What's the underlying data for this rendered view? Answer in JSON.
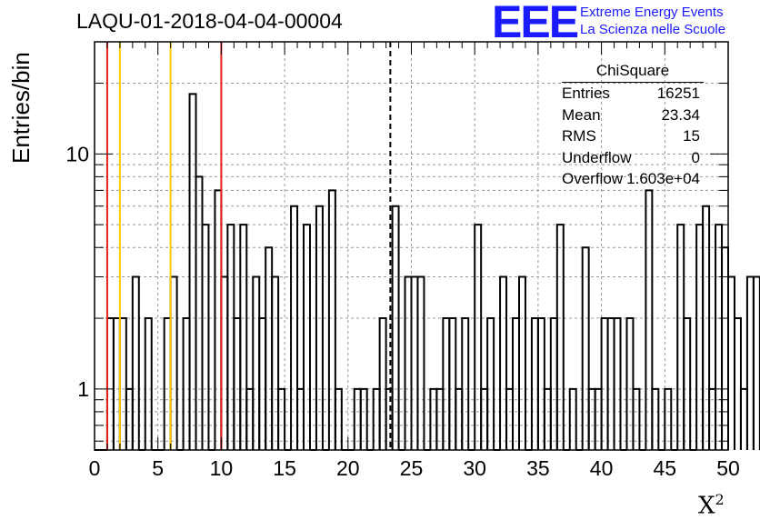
{
  "chart_data": {
    "type": "bar",
    "style": "step-histogram",
    "title": "LAQU-01-2018-04-04-00004",
    "xlabel": "X",
    "xlabel_superscript": "2",
    "ylabel": "Entries/bin",
    "xlim": [
      0,
      50
    ],
    "ylim": [
      0.55,
      30
    ],
    "yscale": "log",
    "grid": true,
    "bin_width": 0.5,
    "x_ticks": [
      "0",
      "5",
      "10",
      "15",
      "20",
      "25",
      "30",
      "35",
      "40",
      "45",
      "50"
    ],
    "y_ticks": [
      "1",
      "10"
    ],
    "values": [
      0,
      0,
      2,
      2,
      2,
      1,
      3,
      0,
      2,
      0,
      0,
      2,
      3,
      0,
      2,
      18,
      8,
      5,
      0,
      7,
      3,
      5,
      2,
      5,
      1,
      3,
      2,
      4,
      3,
      1,
      0,
      6,
      1,
      5,
      0,
      6,
      0,
      7,
      1,
      0,
      0,
      1,
      1,
      0,
      1,
      2,
      1,
      6,
      0,
      3,
      3,
      3,
      0,
      1,
      1,
      2,
      2,
      1,
      2,
      0,
      5,
      1,
      2,
      0,
      3,
      1,
      2,
      3,
      0,
      2,
      2,
      1,
      2,
      5,
      0,
      1,
      0,
      4,
      1,
      1,
      2,
      2,
      2,
      0,
      2,
      1,
      0,
      7,
      1,
      0,
      1,
      0,
      5,
      2,
      0,
      5,
      6,
      1,
      5,
      4,
      3,
      2,
      1,
      3,
      3
    ],
    "vlines": [
      {
        "x": 1,
        "color": "#e8201c",
        "style": "solid"
      },
      {
        "x": 2,
        "color": "#ffcc00",
        "style": "solid"
      },
      {
        "x": 6,
        "color": "#ffcc00",
        "style": "solid"
      },
      {
        "x": 10,
        "color": "#e8201c",
        "style": "solid"
      },
      {
        "x": 23.34,
        "color": "#000000",
        "style": "dashed"
      }
    ]
  },
  "logo": {
    "mark": "EEE",
    "line1": "Extreme Energy Events",
    "line2": "La Scienza nelle Scuole",
    "color": "#1a1aff"
  },
  "stats": {
    "title": "ChiSquare",
    "rows": [
      {
        "key": "Entries",
        "value": "16251"
      },
      {
        "key": "Mean",
        "value": "23.34"
      },
      {
        "key": "RMS",
        "value": "15"
      },
      {
        "key": "Underflow",
        "value": "0"
      },
      {
        "key": "Overflow",
        "value": "1.603e+04"
      }
    ]
  }
}
